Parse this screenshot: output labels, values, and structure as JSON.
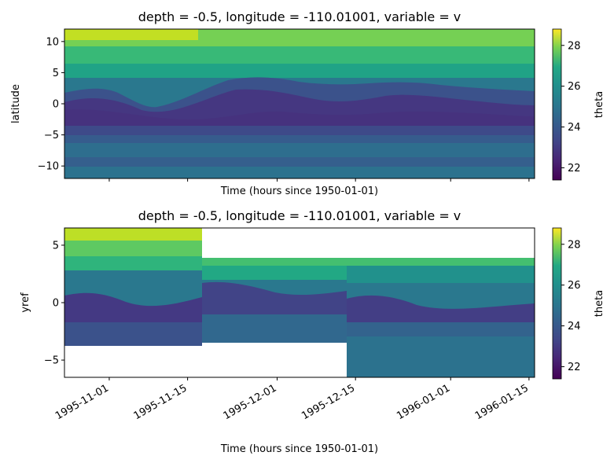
{
  "chart_data": [
    {
      "type": "heatmap",
      "title": "depth = -0.5, longitude = -110.01001, variable = v",
      "xlabel": "Time (hours since 1950-01-01)",
      "ylabel": "latitude",
      "x_range": [
        "1995-10-24",
        "1996-01-16"
      ],
      "ylim": [
        -12,
        12
      ],
      "yticks": [
        10,
        5,
        0,
        -5,
        -10
      ],
      "ytick_labels": [
        "10",
        "5",
        "0",
        "−5",
        "−10"
      ],
      "xticks": [
        "1995-11-01",
        "1995-11-15",
        "1995-12-01",
        "1995-12-15",
        "1996-01-01",
        "1996-01-15"
      ],
      "colorscale": "viridis",
      "colorbar": {
        "label": "theta",
        "range": [
          21.4,
          28.8
        ],
        "ticks": [
          28,
          26,
          24,
          22
        ],
        "tick_labels": [
          "28",
          "26",
          "24",
          "22"
        ]
      },
      "grid": false
    },
    {
      "type": "heatmap",
      "title": "depth = -0.5, longitude = -110.01001, variable = v",
      "xlabel": "Time (hours since 1950-01-01)",
      "ylabel": "yref",
      "x_range": [
        "1995-10-24",
        "1996-01-16"
      ],
      "ylim": [
        -6.5,
        6.5
      ],
      "yticks": [
        5,
        0,
        -5
      ],
      "ytick_labels": [
        "5",
        "0",
        "−5"
      ],
      "xticks": [
        "1995-11-01",
        "1995-11-15",
        "1995-12-01",
        "1995-12-15",
        "1996-01-01",
        "1996-01-15"
      ],
      "xtick_labels": [
        "1995-11-01",
        "1995-11-15",
        "1995-12-01",
        "1995-12-15",
        "1996-01-01",
        "1996-01-15"
      ],
      "data_extent_by_period": [
        {
          "from": "1995-10-24",
          "to": "1995-11-19",
          "yref_range": [
            -3.6,
            6.5
          ]
        },
        {
          "from": "1995-11-19",
          "to": "1995-12-14",
          "yref_range": [
            -3.3,
            3.8
          ]
        },
        {
          "from": "1995-12-14",
          "to": "1996-01-16",
          "yref_range": [
            -6.5,
            3.8
          ]
        }
      ],
      "colorscale": "viridis",
      "colorbar": {
        "label": "theta",
        "range": [
          21.4,
          28.8
        ],
        "ticks": [
          28,
          26,
          24,
          22
        ],
        "tick_labels": [
          "28",
          "26",
          "24",
          "22"
        ]
      },
      "grid": false
    }
  ]
}
